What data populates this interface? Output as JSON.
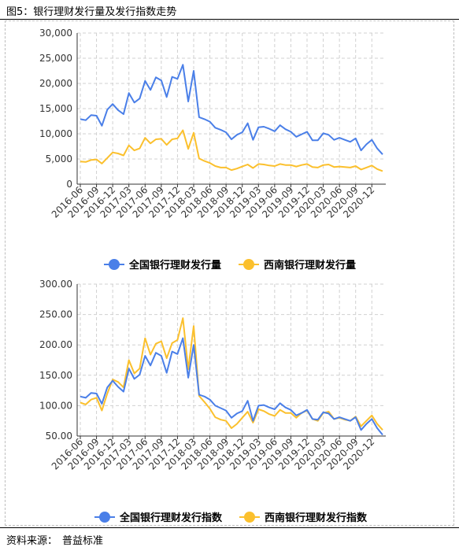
{
  "figure_title": "图5：银行理财发行量及发行指数走势",
  "source": {
    "label": "资料来源：",
    "value": "普益标准"
  },
  "colors": {
    "national": "#4a7fe8",
    "southwest": "#fbc02d",
    "axis": "#333333",
    "grid": "#d0d0d0"
  },
  "chart_data": [
    {
      "type": "line",
      "xlabel": "",
      "ylabel": "",
      "ylim": [
        0,
        30000
      ],
      "yticks": [
        "0",
        "5,000",
        "10,000",
        "15,000",
        "20,000",
        "25,000",
        "30,000"
      ],
      "x_tick_labels": [
        "2016-06",
        "2016-09",
        "2016-12",
        "2017-03",
        "2017-06",
        "2017-09",
        "2017-12",
        "2018-03",
        "2018-06",
        "2018-09",
        "2018-12",
        "2019-03",
        "2019-06",
        "2019-09",
        "2019-12",
        "2020-03",
        "2020-06",
        "2020-09",
        "2020-12"
      ],
      "grid": true,
      "legend_position": "bottom",
      "series": [
        {
          "name": "全国银行理财发行量",
          "values": [
            12900,
            12700,
            13700,
            13600,
            11600,
            14800,
            15900,
            14700,
            13900,
            18100,
            16200,
            17000,
            20500,
            18700,
            21200,
            20600,
            17300,
            21300,
            20900,
            23700,
            16400,
            22500,
            13300,
            12900,
            12400,
            11200,
            10800,
            10300,
            8900,
            9800,
            10300,
            12100,
            8800,
            11300,
            11400,
            11000,
            10500,
            11700,
            10900,
            10400,
            9400,
            9900,
            10400,
            8700,
            8700,
            10100,
            9800,
            8800,
            9200,
            8800,
            8400,
            9100,
            6700,
            7900,
            8800,
            7100,
            5900
          ]
        },
        {
          "name": "西南银行理财发行量",
          "values": [
            4500,
            4400,
            4800,
            4900,
            4100,
            5200,
            6300,
            6100,
            5700,
            7700,
            6700,
            7100,
            9200,
            8100,
            8900,
            9000,
            7800,
            8900,
            9100,
            10700,
            7000,
            10200,
            5100,
            4600,
            4200,
            3600,
            3300,
            3300,
            2800,
            3100,
            3500,
            3900,
            3200,
            4000,
            3900,
            3700,
            3600,
            4000,
            3800,
            3800,
            3500,
            3800,
            4000,
            3400,
            3300,
            3800,
            3900,
            3400,
            3500,
            3400,
            3300,
            3600,
            2900,
            3300,
            3700,
            3000,
            2600
          ]
        }
      ]
    },
    {
      "type": "line",
      "xlabel": "",
      "ylabel": "",
      "ylim": [
        50,
        300
      ],
      "yticks": [
        "50.00",
        "100.00",
        "150.00",
        "200.00",
        "250.00",
        "300.00"
      ],
      "x_tick_labels": [
        "2016-06",
        "2016-09",
        "2016-12",
        "2017-03",
        "2017-06",
        "2017-09",
        "2017-12",
        "2018-03",
        "2018-06",
        "2018-09",
        "2018-12",
        "2019-03",
        "2019-06",
        "2019-09",
        "2019-12",
        "2020-03",
        "2020-06",
        "2020-09",
        "2020-12"
      ],
      "grid": true,
      "legend_position": "bottom",
      "series": [
        {
          "name": "全国银行理财发行指数",
          "values": [
            115,
            113,
            121,
            120,
            103,
            130,
            141,
            131,
            123,
            161,
            144,
            151,
            182,
            166,
            187,
            182,
            154,
            189,
            185,
            211,
            146,
            200,
            118,
            115,
            110,
            100,
            96,
            92,
            80,
            87,
            91,
            108,
            75,
            100,
            101,
            97,
            94,
            104,
            97,
            93,
            84,
            88,
            93,
            78,
            77,
            89,
            87,
            78,
            81,
            78,
            75,
            81,
            60,
            70,
            78,
            63,
            52
          ]
        },
        {
          "name": "西南银行理财发行指数",
          "values": [
            105,
            102,
            110,
            113,
            92,
            120,
            143,
            139,
            130,
            175,
            153,
            161,
            211,
            184,
            202,
            206,
            178,
            203,
            208,
            244,
            160,
            231,
            116,
            106,
            95,
            81,
            77,
            75,
            63,
            70,
            80,
            90,
            72,
            94,
            91,
            86,
            83,
            93,
            88,
            88,
            80,
            88,
            92,
            78,
            75,
            88,
            90,
            78,
            80,
            77,
            75,
            82,
            66,
            75,
            84,
            70,
            60
          ]
        }
      ]
    }
  ]
}
